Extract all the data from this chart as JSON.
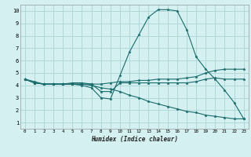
{
  "xlabel": "Humidex (Indice chaleur)",
  "bg_color": "#d4f0f0",
  "grid_color": "#b0d8d8",
  "line_color": "#1a6b6b",
  "xlim": [
    -0.5,
    23.5
  ],
  "ylim": [
    0.5,
    10.5
  ],
  "xticks": [
    0,
    1,
    2,
    3,
    4,
    5,
    6,
    7,
    8,
    9,
    10,
    11,
    12,
    13,
    14,
    15,
    16,
    17,
    18,
    19,
    20,
    21,
    22,
    23
  ],
  "yticks": [
    1,
    2,
    3,
    4,
    5,
    6,
    7,
    8,
    9,
    10
  ],
  "lines": [
    {
      "x": [
        0,
        1,
        2,
        3,
        4,
        5,
        6,
        7,
        8,
        9,
        10,
        11,
        12,
        13,
        14,
        15,
        16,
        17,
        18,
        19,
        20,
        21,
        22,
        23
      ],
      "y": [
        4.5,
        4.2,
        4.1,
        4.1,
        4.1,
        4.1,
        4.0,
        3.8,
        3.0,
        2.9,
        4.8,
        6.7,
        8.1,
        9.5,
        10.1,
        10.1,
        10.0,
        8.5,
        6.3,
        5.3,
        4.5,
        3.6,
        2.6,
        1.3
      ]
    },
    {
      "x": [
        0,
        1,
        2,
        3,
        4,
        5,
        6,
        7,
        8,
        9,
        10,
        11,
        12,
        13,
        14,
        15,
        16,
        17,
        18,
        19,
        20,
        21,
        22,
        23
      ],
      "y": [
        4.5,
        4.2,
        4.1,
        4.1,
        4.1,
        4.1,
        4.1,
        4.1,
        3.5,
        3.5,
        4.2,
        4.2,
        4.2,
        4.2,
        4.2,
        4.2,
        4.2,
        4.2,
        4.3,
        4.5,
        4.6,
        4.5,
        4.5,
        4.5
      ]
    },
    {
      "x": [
        0,
        1,
        2,
        3,
        4,
        5,
        6,
        7,
        8,
        9,
        10,
        11,
        12,
        13,
        14,
        15,
        16,
        17,
        18,
        19,
        20,
        21,
        22,
        23
      ],
      "y": [
        4.5,
        4.2,
        4.1,
        4.1,
        4.1,
        4.2,
        4.2,
        4.1,
        4.1,
        4.2,
        4.3,
        4.3,
        4.4,
        4.4,
        4.5,
        4.5,
        4.5,
        4.6,
        4.7,
        5.0,
        5.2,
        5.3,
        5.3,
        5.3
      ]
    },
    {
      "x": [
        0,
        1,
        2,
        3,
        4,
        5,
        6,
        7,
        8,
        9,
        10,
        11,
        12,
        13,
        14,
        15,
        16,
        17,
        18,
        19,
        20,
        21,
        22,
        23
      ],
      "y": [
        4.5,
        4.3,
        4.1,
        4.1,
        4.1,
        4.1,
        4.1,
        4.0,
        3.8,
        3.7,
        3.5,
        3.2,
        3.0,
        2.7,
        2.5,
        2.3,
        2.1,
        1.9,
        1.8,
        1.6,
        1.5,
        1.4,
        1.3,
        1.3
      ]
    }
  ]
}
